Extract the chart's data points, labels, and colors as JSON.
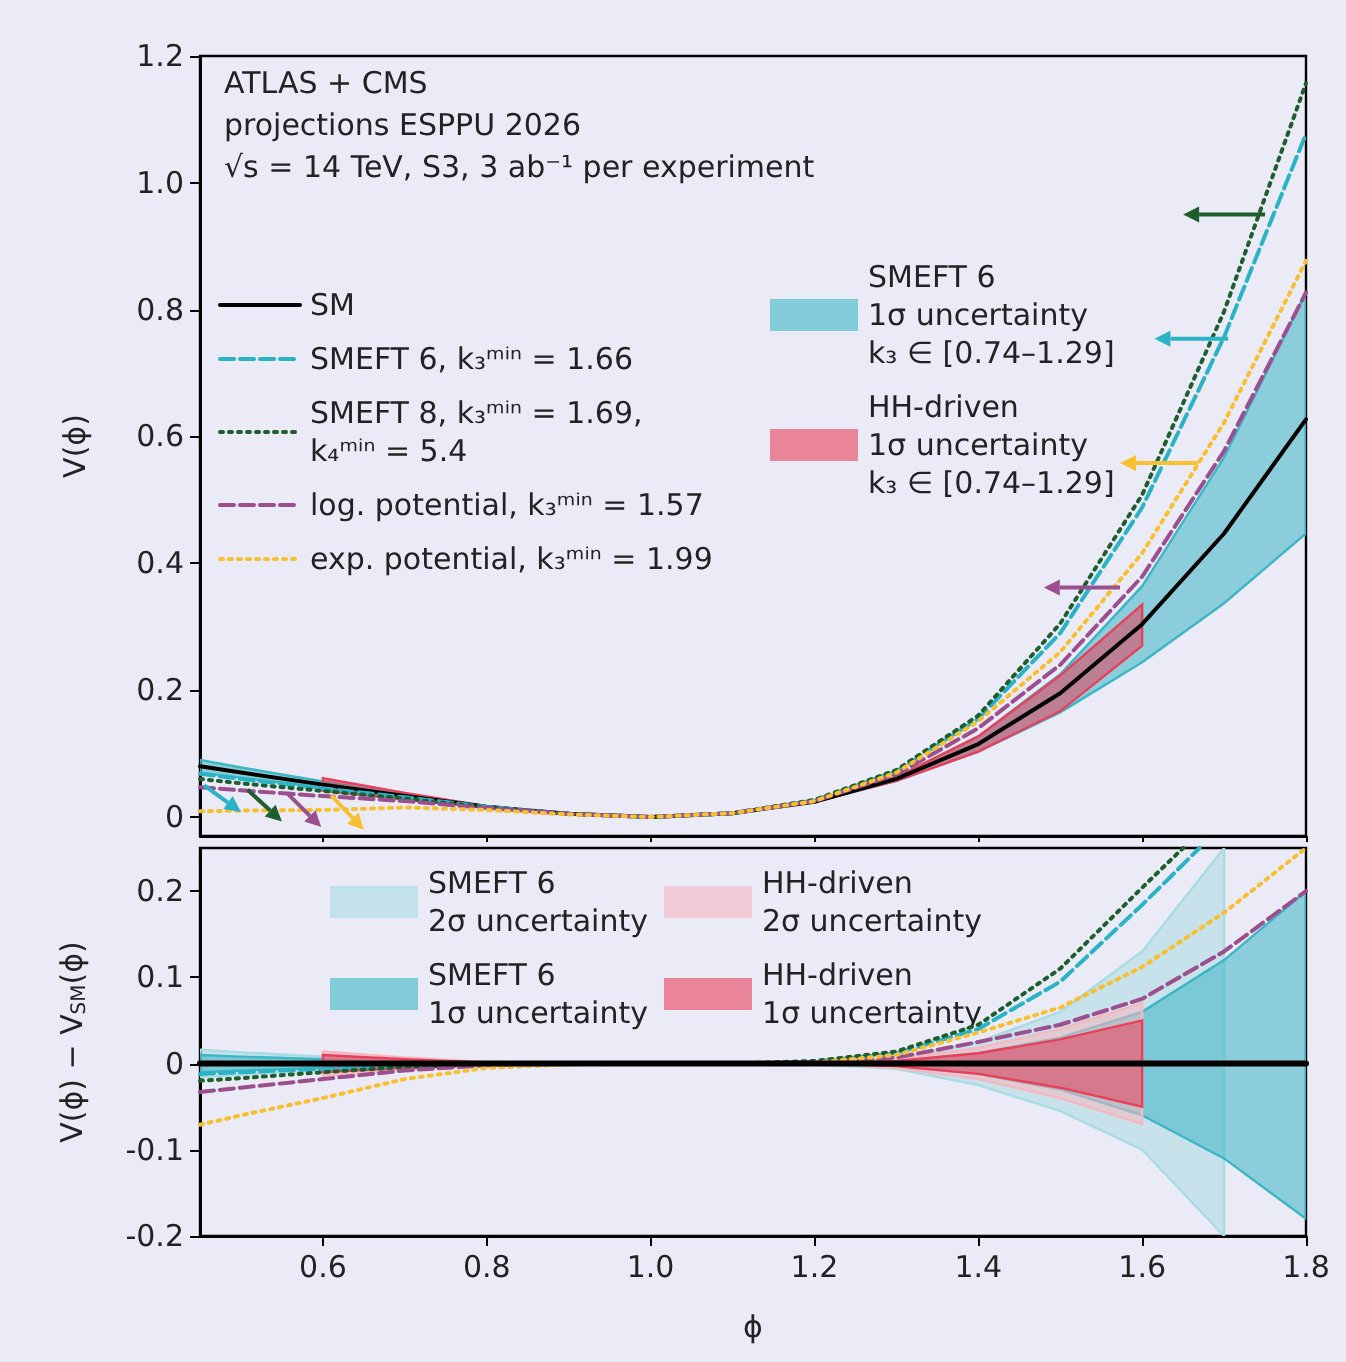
{
  "chart_data": [
    {
      "type": "line",
      "ylabel": "V(ϕ)",
      "xlim": [
        0.45,
        1.8
      ],
      "ylim": [
        -0.03,
        1.2
      ],
      "xticks": [
        0.6,
        0.8,
        1,
        1.2,
        1.4,
        1.6,
        1.8
      ],
      "yticks": [
        0,
        0.2,
        0.4,
        0.6,
        0.8,
        {
          "value": 1,
          "label": "1.0"
        },
        1.2
      ],
      "tick_labels": "y",
      "legend": "left",
      "annotations": [
        "ATLAS + CMS",
        "projections ESPPU 2026",
        "√s = 14 TeV, S3, 3 ab⁻¹ per experiment"
      ],
      "x": [
        0.45,
        0.5,
        0.6,
        0.7,
        0.8,
        0.9,
        1.0,
        1.1,
        1.2,
        1.3,
        1.4,
        1.5,
        1.6,
        1.7,
        1.8
      ],
      "series": [
        {
          "name": "SM",
          "type": "line",
          "color": "#000000",
          "line_style": "solid",
          "values": [
            0.08,
            0.07,
            0.051,
            0.033,
            0.016,
            0.005,
            0,
            0.006,
            0.024,
            0.06,
            0.115,
            0.195,
            0.304,
            0.447,
            0.627
          ]
        },
        {
          "name": "SMEFT 6, k₃ᵐⁱⁿ = 1.66",
          "type": "line",
          "color": "#2ab3c6",
          "line_style": "dashed",
          "values": [
            0.068,
            0.06,
            0.045,
            0.031,
            0.016,
            0.005,
            0,
            0.006,
            0.026,
            0.072,
            0.155,
            0.29,
            0.488,
            0.757,
            1.077
          ]
        },
        {
          "name": "SMEFT 8, k₃ᵐⁱⁿ = 1.69,\nk₄ᵐⁱⁿ = 5.4",
          "type": "line",
          "color": "#1e5e2e",
          "line_style": "dotted",
          "values": [
            0.06,
            0.053,
            0.041,
            0.029,
            0.015,
            0.005,
            0,
            0.006,
            0.027,
            0.074,
            0.16,
            0.305,
            0.508,
            0.797,
            1.157
          ]
        },
        {
          "name": "log. potential, k₃ᵐⁱⁿ = 1.57",
          "type": "line",
          "color": "#9b4f8e",
          "line_style": "dashed",
          "values": [
            0.047,
            0.042,
            0.033,
            0.025,
            0.014,
            0.005,
            0,
            0.006,
            0.025,
            0.067,
            0.14,
            0.24,
            0.379,
            0.577,
            0.827
          ]
        },
        {
          "name": "exp. potential, k₃ᵐⁱⁿ = 1.99",
          "type": "line",
          "color": "#f8c030",
          "line_style": "dotted",
          "values": [
            0.009,
            0.01,
            0.011,
            0.015,
            0.011,
            0.004,
            0,
            0.006,
            0.025,
            0.07,
            0.151,
            0.26,
            0.416,
            0.622,
            0.877
          ]
        },
        {
          "name": "SMEFT 6\n1σ uncertainty\nk₃ ∈ [0.74–1.29]",
          "type": "line",
          "color": "#3cb5c5",
          "values": [
            null,
            null,
            null,
            null,
            null,
            null,
            null,
            null,
            null,
            null,
            null,
            null,
            null,
            null,
            null
          ],
          "lower": [
            0.07,
            0.062,
            0.046,
            0.031,
            0.016,
            0.005,
            0,
            0.006,
            0.024,
            0.057,
            0.103,
            0.165,
            0.244,
            0.337,
            0.447
          ],
          "upper": [
            0.09,
            0.078,
            0.056,
            0.035,
            0.016,
            0.005,
            0,
            0.006,
            0.024,
            0.063,
            0.127,
            0.225,
            0.364,
            0.567,
            0.827
          ]
        },
        {
          "name": "HH-driven\n1σ uncertainty\nk₃ ∈ [0.74–1.29]",
          "type": "line",
          "color": "#e8405a",
          "x": [
            0.6,
            0.7,
            0.8,
            0.9,
            1.0,
            1.1,
            1.2,
            1.3,
            1.4,
            1.5,
            1.6
          ],
          "values": [
            null,
            null,
            null,
            null,
            null,
            null,
            null,
            null,
            null,
            null,
            null
          ],
          "lower": [
            0.041,
            0.028,
            0.015,
            0.005,
            0,
            0.006,
            0.024,
            0.057,
            0.103,
            0.167,
            0.27
          ],
          "upper": [
            0.061,
            0.038,
            0.017,
            0.005,
            0,
            0.006,
            0.024,
            0.063,
            0.127,
            0.223,
            0.335
          ]
        }
      ]
    },
    {
      "type": "line",
      "xlabel": "ϕ",
      "ylabel": "V(ϕ) − V$_{SM}$(ϕ)",
      "xlim": [
        0.45,
        1.8
      ],
      "ylim": [
        -0.2,
        0.25
      ],
      "xticks": [
        0.6,
        0.8,
        {
          "value": 1,
          "label": "1.0"
        },
        1.2,
        1.4,
        1.6,
        1.8
      ],
      "yticks": [
        -0.2,
        -0.1,
        0,
        0.1,
        0.2
      ],
      "legend": "top",
      "x": [
        0.45,
        0.5,
        0.6,
        0.7,
        0.8,
        0.9,
        1.0,
        1.1,
        1.2,
        1.3,
        1.4,
        1.5,
        1.6,
        1.7,
        1.8
      ],
      "series": [
        {
          "name": "SMEFT 6\n2σ uncertainty",
          "type": "line",
          "color": "#a9dbe2",
          "x": [
            0.45,
            0.5,
            0.6,
            0.7,
            0.8,
            0.9,
            1.0,
            1.1,
            1.2,
            1.3,
            1.4,
            1.5,
            1.6,
            1.7
          ],
          "values": [
            null,
            null,
            null,
            null,
            null,
            null,
            null,
            null,
            null,
            null,
            null,
            null,
            null,
            null
          ],
          "lower": [
            -0.016,
            -0.013,
            -0.008,
            -0.003,
            -0.001,
            0,
            0,
            0,
            -0.001,
            -0.006,
            -0.025,
            -0.055,
            -0.1,
            -0.2
          ],
          "upper": [
            0.016,
            0.013,
            0.008,
            0.003,
            0.001,
            0,
            0,
            0,
            0.001,
            0.006,
            0.025,
            0.06,
            0.13,
            0.25
          ]
        },
        {
          "name": "SMEFT 6\n1σ uncertainty",
          "type": "line",
          "color": "#3cb5c5",
          "values": [
            null,
            null,
            null,
            null,
            null,
            null,
            null,
            null,
            null,
            null,
            null,
            null,
            null,
            null,
            null
          ],
          "lower": [
            -0.01,
            -0.008,
            -0.005,
            -0.002,
            0,
            0,
            0,
            0,
            0,
            -0.003,
            -0.012,
            -0.03,
            -0.06,
            -0.11,
            -0.18
          ],
          "upper": [
            0.01,
            0.008,
            0.005,
            0.002,
            0,
            0,
            0,
            0,
            0,
            0.003,
            0.012,
            0.03,
            0.06,
            0.12,
            0.2
          ]
        },
        {
          "name": "HH-driven\n2σ uncertainty",
          "type": "line",
          "color": "#f5b8c0",
          "x": [
            0.6,
            0.7,
            0.8,
            0.9,
            1.0,
            1.1,
            1.2,
            1.3,
            1.4,
            1.5,
            1.6
          ],
          "values": [
            null,
            null,
            null,
            null,
            null,
            null,
            null,
            null,
            null,
            null,
            null
          ],
          "lower": [
            -0.014,
            -0.007,
            -0.002,
            0,
            0,
            0,
            0,
            -0.005,
            -0.018,
            -0.04,
            -0.07
          ],
          "upper": [
            0.014,
            0.007,
            0.002,
            0,
            0,
            0,
            0,
            0.005,
            0.018,
            0.04,
            0.07
          ]
        },
        {
          "name": "HH-driven\n1σ uncertainty",
          "type": "line",
          "color": "#e8405a",
          "x": [
            0.6,
            0.7,
            0.8,
            0.9,
            1.0,
            1.1,
            1.2,
            1.3,
            1.4,
            1.5,
            1.6
          ],
          "values": [
            null,
            null,
            null,
            null,
            null,
            null,
            null,
            null,
            null,
            null,
            null
          ],
          "lower": [
            -0.01,
            -0.005,
            -0.001,
            0,
            0,
            0,
            0,
            -0.003,
            -0.012,
            -0.028,
            -0.05
          ],
          "upper": [
            0.01,
            0.005,
            0.001,
            0,
            0,
            0,
            0,
            0.003,
            0.012,
            0.028,
            0.05
          ]
        },
        {
          "type": "line",
          "color": "#2ab3c6",
          "line_style": "dashed",
          "x": [
            0.45,
            0.5,
            0.6,
            0.7,
            0.8,
            0.9,
            1.0,
            1.1,
            1.2,
            1.3,
            1.4,
            1.5,
            1.6,
            1.67
          ],
          "values": [
            -0.012,
            -0.01,
            -0.006,
            -0.002,
            0,
            0,
            0,
            0,
            0.002,
            0.012,
            0.04,
            0.095,
            0.184,
            0.25
          ]
        },
        {
          "type": "line",
          "color": "#1e5e2e",
          "line_style": "dotted",
          "x": [
            0.45,
            0.5,
            0.6,
            0.7,
            0.8,
            0.9,
            1.0,
            1.1,
            1.2,
            1.3,
            1.4,
            1.5,
            1.6,
            1.65
          ],
          "values": [
            -0.02,
            -0.017,
            -0.01,
            -0.004,
            -0.001,
            0,
            0,
            0,
            0.003,
            0.014,
            0.045,
            0.11,
            0.204,
            0.25
          ]
        },
        {
          "type": "line",
          "color": "#9b4f8e",
          "line_style": "dashed",
          "values": [
            -0.033,
            -0.028,
            -0.018,
            -0.008,
            -0.002,
            0,
            0,
            0,
            0.001,
            0.007,
            0.025,
            0.045,
            0.075,
            0.13,
            0.2
          ]
        },
        {
          "type": "line",
          "color": "#f8c030",
          "line_style": "dotted",
          "values": [
            -0.071,
            -0.06,
            -0.04,
            -0.018,
            -0.005,
            -0.001,
            0,
            0,
            0.001,
            0.01,
            0.036,
            0.065,
            0.112,
            0.175,
            0.25
          ]
        },
        {
          "type": "line",
          "color": "#000000",
          "line_style": "solid",
          "values": [
            0,
            0,
            0,
            0,
            0,
            0,
            0,
            0,
            0,
            0,
            0,
            0,
            0,
            0,
            0
          ]
        }
      ]
    }
  ]
}
